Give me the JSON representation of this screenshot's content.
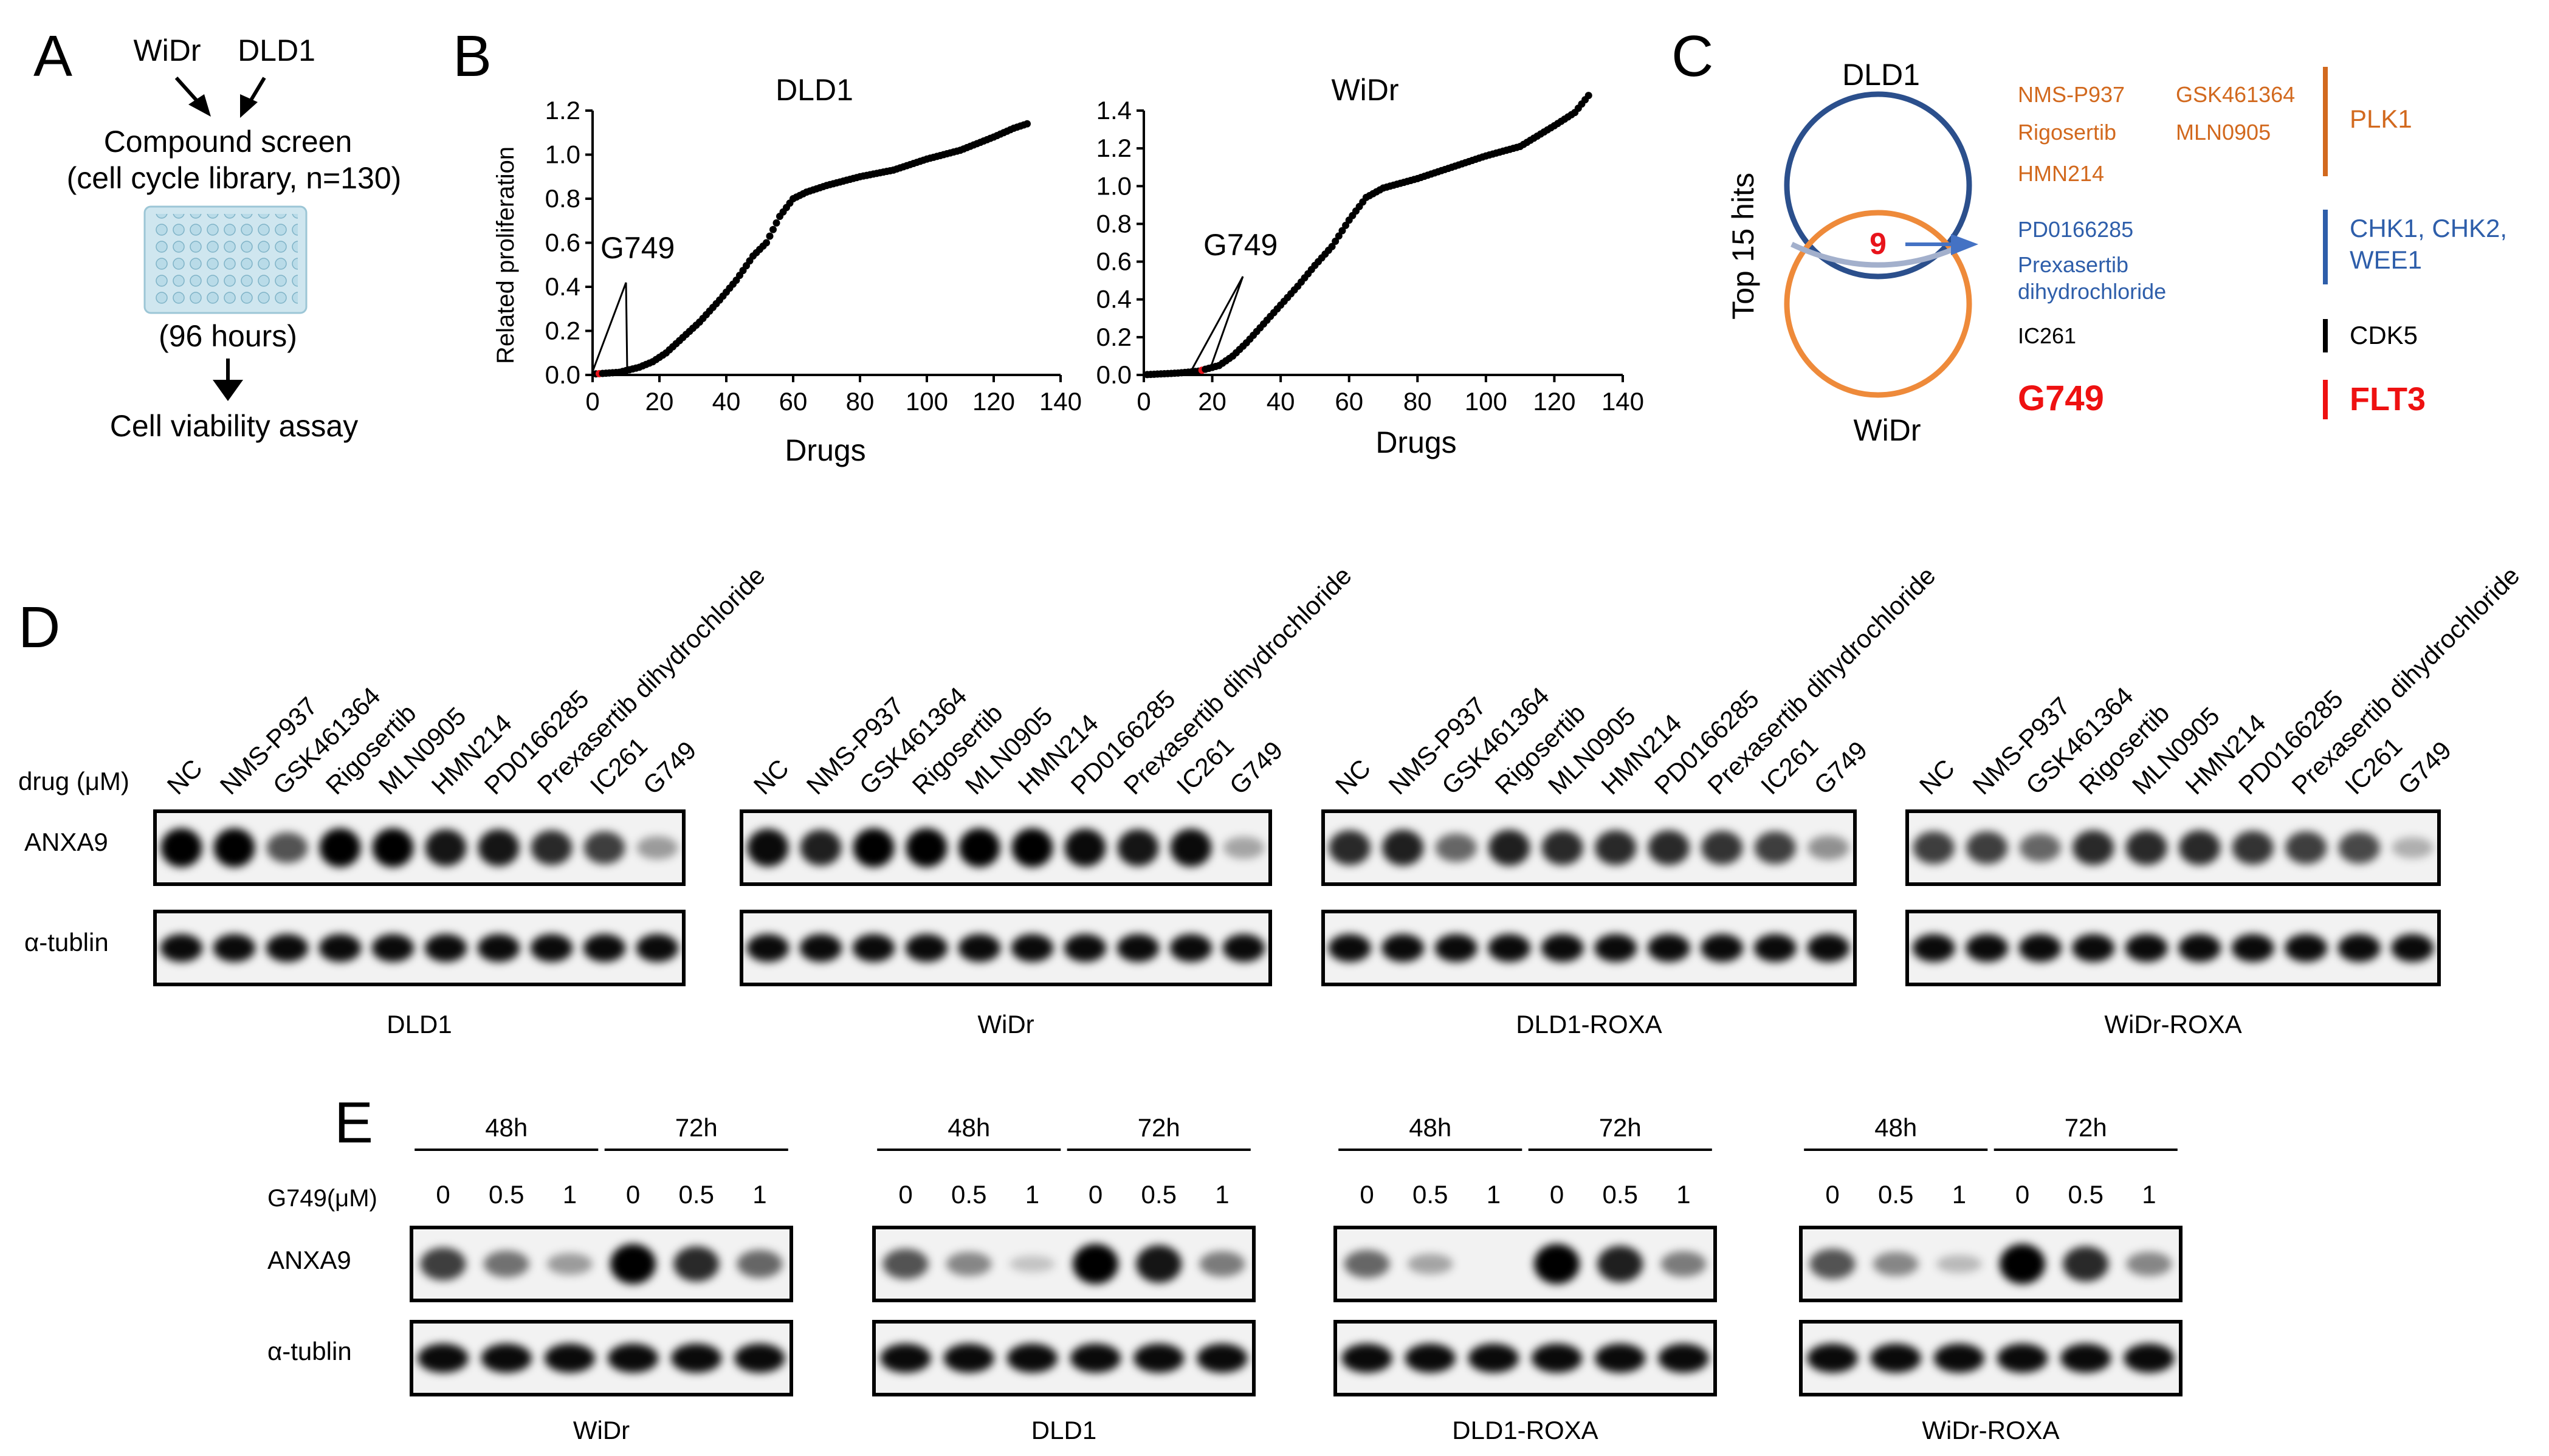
{
  "panel_letters": [
    "A",
    "B",
    "C",
    "D",
    "E"
  ],
  "panelA": {
    "cell_lines": [
      "WiDr",
      "DLD1"
    ],
    "screen_title": "Compound screen",
    "library": "(cell cycle library, n=130)",
    "duration": "(96 hours)",
    "assay": "Cell viability assay"
  },
  "chart_data": [
    {
      "type": "scatter",
      "title": "DLD1",
      "xlabel": "Drugs",
      "ylabel": "Related proliferation",
      "xlim": [
        0,
        140
      ],
      "ylim": [
        0,
        1.2
      ],
      "xticks": [
        "0",
        "20",
        "40",
        "60",
        "80",
        "100",
        "120",
        "140"
      ],
      "yticks": [
        "0.0",
        "0.2",
        "0.4",
        "0.6",
        "0.8",
        "1.0",
        "1.2"
      ],
      "annotation": "G749",
      "highlight_index": 2,
      "anchors": [
        [
          1,
          0.005
        ],
        [
          8,
          0.012
        ],
        [
          14,
          0.035
        ],
        [
          18,
          0.06
        ],
        [
          22,
          0.1
        ],
        [
          27,
          0.17
        ],
        [
          32,
          0.24
        ],
        [
          38,
          0.34
        ],
        [
          43,
          0.43
        ],
        [
          48,
          0.54
        ],
        [
          52,
          0.6
        ],
        [
          56,
          0.72
        ],
        [
          60,
          0.8
        ],
        [
          64,
          0.83
        ],
        [
          70,
          0.86
        ],
        [
          80,
          0.9
        ],
        [
          90,
          0.93
        ],
        [
          100,
          0.98
        ],
        [
          110,
          1.02
        ],
        [
          120,
          1.08
        ],
        [
          126,
          1.12
        ],
        [
          130,
          1.14
        ]
      ]
    },
    {
      "type": "scatter",
      "title": "WiDr",
      "xlabel": "Drugs",
      "ylabel": "",
      "xlim": [
        0,
        140
      ],
      "ylim": [
        0,
        1.4
      ],
      "xticks": [
        "0",
        "20",
        "40",
        "60",
        "80",
        "100",
        "120",
        "140"
      ],
      "yticks": [
        "0.0",
        "0.2",
        "0.4",
        "0.6",
        "0.8",
        "1.0",
        "1.2",
        "1.4"
      ],
      "annotation": "G749",
      "highlight_index": 17,
      "anchors": [
        [
          1,
          0.002
        ],
        [
          10,
          0.01
        ],
        [
          16,
          0.02
        ],
        [
          22,
          0.05
        ],
        [
          26,
          0.1
        ],
        [
          30,
          0.17
        ],
        [
          35,
          0.27
        ],
        [
          40,
          0.37
        ],
        [
          45,
          0.47
        ],
        [
          50,
          0.58
        ],
        [
          55,
          0.68
        ],
        [
          60,
          0.82
        ],
        [
          65,
          0.94
        ],
        [
          70,
          0.99
        ],
        [
          80,
          1.04
        ],
        [
          90,
          1.1
        ],
        [
          100,
          1.16
        ],
        [
          110,
          1.21
        ],
        [
          120,
          1.32
        ],
        [
          126,
          1.39
        ],
        [
          130,
          1.48
        ]
      ]
    }
  ],
  "panelC": {
    "venn_top": "DLD1",
    "venn_bottom": "WiDr",
    "side_label": "Top 15 hits",
    "overlap": "9",
    "groups": [
      {
        "drugs": [
          "NMS-P937",
          "GSK461364",
          "Rigosertib",
          "MLN0905",
          "HMN214"
        ],
        "target": "PLK1",
        "color": "#d2691e"
      },
      {
        "drugs": [
          "PD0166285",
          "Prexasertib",
          "dihydrochloride"
        ],
        "target": [
          "CHK1, CHK2,",
          "WEE1"
        ],
        "color": "#2e5eaa"
      },
      {
        "drugs": [
          "IC261"
        ],
        "target": "CDK5",
        "color": "#000000"
      },
      {
        "drugs": [
          "G749"
        ],
        "target": "FLT3",
        "color": "#ee1111"
      }
    ]
  },
  "panelD": {
    "drug_label": "drug (μM)",
    "lanes": [
      "NC",
      "NMS-P937",
      "GSK461364",
      "Rigosertib",
      "MLN0905",
      "HMN214",
      "PD0166285",
      "Prexasertib dihydrochloride",
      "IC261",
      "G749"
    ],
    "rows": [
      "ANXA9",
      "α-tublin"
    ],
    "blots": [
      "DLD1",
      "WiDr",
      "DLD1-ROXA",
      "WiDr-ROXA"
    ],
    "anxa9_intensity": [
      [
        1.0,
        1.0,
        0.6,
        1.0,
        1.0,
        0.9,
        0.9,
        0.8,
        0.7,
        0.25
      ],
      [
        0.95,
        0.85,
        1.0,
        1.0,
        1.0,
        1.0,
        0.95,
        0.9,
        0.95,
        0.2
      ],
      [
        0.8,
        0.85,
        0.5,
        0.85,
        0.8,
        0.8,
        0.8,
        0.75,
        0.7,
        0.3
      ],
      [
        0.7,
        0.7,
        0.5,
        0.8,
        0.8,
        0.8,
        0.75,
        0.7,
        0.65,
        0.15
      ]
    ]
  },
  "panelE": {
    "dose_label": "G749(μM)",
    "timepoints": [
      "48h",
      "72h"
    ],
    "doses": [
      "0",
      "0.5",
      "1",
      "0",
      "0.5",
      "1"
    ],
    "rows": [
      "ANXA9",
      "α-tublin"
    ],
    "blots": [
      "WiDr",
      "DLD1",
      "DLD1-ROXA",
      "WiDr-ROXA"
    ],
    "anxa9_intensity": [
      [
        0.7,
        0.45,
        0.25,
        1.0,
        0.8,
        0.5
      ],
      [
        0.6,
        0.35,
        0.05,
        1.0,
        0.9,
        0.4
      ],
      [
        0.5,
        0.2,
        0.02,
        1.0,
        0.85,
        0.4
      ],
      [
        0.6,
        0.35,
        0.1,
        1.0,
        0.8,
        0.35
      ]
    ]
  }
}
